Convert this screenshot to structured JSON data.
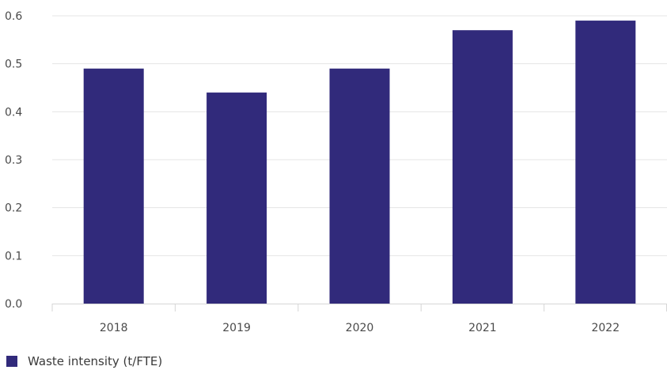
{
  "chart_data": {
    "type": "bar",
    "title": "",
    "xlabel": "",
    "ylabel": "",
    "categories": [
      "2018",
      "2019",
      "2020",
      "2021",
      "2022"
    ],
    "series": [
      {
        "name": "Waste intensity (t/FTE)",
        "values": [
          0.49,
          0.44,
          0.49,
          0.57,
          0.59
        ],
        "color": "#312a7b"
      }
    ],
    "ylim": [
      0,
      0.6
    ],
    "yticks": [
      "0.0",
      "0.1",
      "0.2",
      "0.3",
      "0.4",
      "0.5",
      "0.6"
    ],
    "grid": true,
    "legend_position": "bottom-left"
  }
}
